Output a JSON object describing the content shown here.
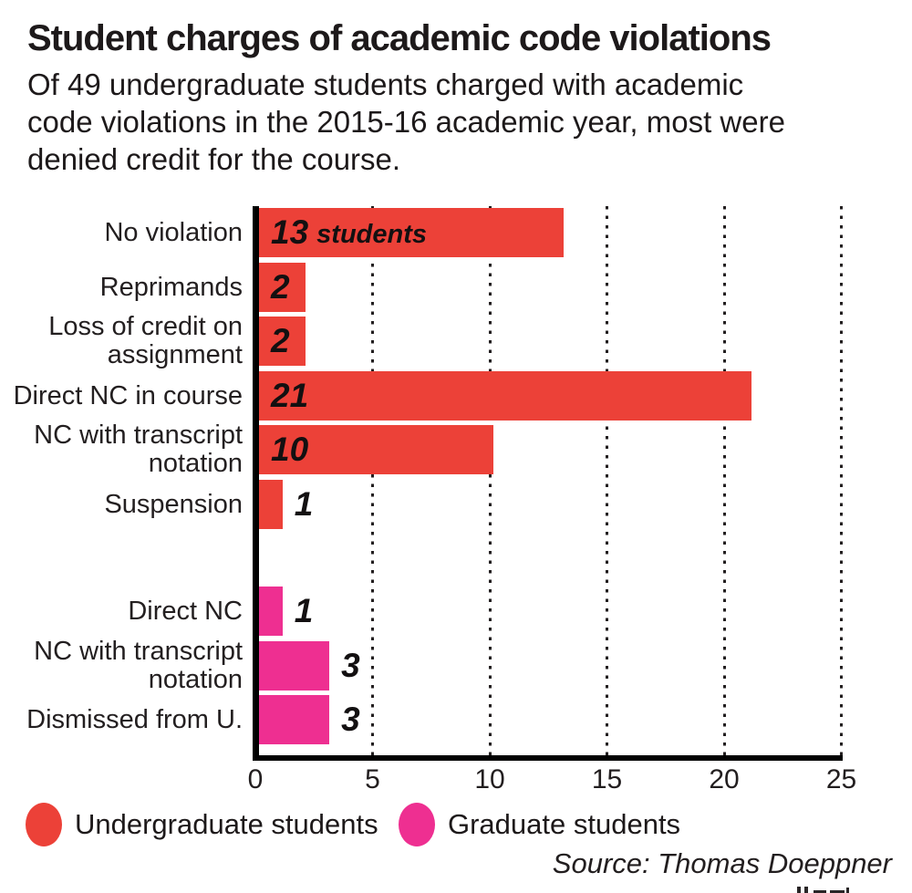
{
  "title": "Student charges of academic code violations",
  "subtitle_lines": [
    "Of 49 undergraduate students charged with academic",
    "code violations in the 2015-16 academic year, most were",
    "denied credit for the course."
  ],
  "source": "Source: Thomas Doeppner",
  "legend": [
    {
      "label": "Undergraduate students",
      "color": "#ec4138"
    },
    {
      "label": "Graduate students",
      "color": "#ee2f91"
    }
  ],
  "chart_data": {
    "type": "bar",
    "orientation": "horizontal",
    "title": "Student charges of academic code violations",
    "xlabel": "",
    "ylabel": "",
    "x_axis": {
      "min": 0,
      "max": 25,
      "ticks": [
        "0",
        "5",
        "10",
        "15",
        "20",
        "25"
      ],
      "tick_values": [
        0,
        5,
        10,
        15,
        20,
        25
      ],
      "gridlines": [
        5,
        10,
        15,
        20,
        25
      ],
      "grid_style": "dotted"
    },
    "rows": [
      {
        "label_lines": [
          "No violation"
        ],
        "value": 13,
        "value_suffix": "students",
        "series": "Undergraduate students",
        "value_inside": true
      },
      {
        "label_lines": [
          "Reprimands"
        ],
        "value": 2,
        "series": "Undergraduate students",
        "value_inside": true
      },
      {
        "label_lines": [
          "Loss of credit on",
          "assignment"
        ],
        "value": 2,
        "series": "Undergraduate students",
        "value_inside": true
      },
      {
        "label_lines": [
          "Direct NC in course"
        ],
        "value": 21,
        "series": "Undergraduate students",
        "value_inside": true
      },
      {
        "label_lines": [
          "NC with transcript",
          "notation"
        ],
        "value": 10,
        "series": "Undergraduate students",
        "value_inside": true
      },
      {
        "label_lines": [
          "Suspension"
        ],
        "value": 1,
        "series": "Undergraduate students",
        "value_inside": false
      },
      {
        "label_lines": [
          "Direct NC"
        ],
        "value": 1,
        "series": "Graduate students",
        "value_inside": false
      },
      {
        "label_lines": [
          "NC with transcript",
          "notation"
        ],
        "value": 3,
        "series": "Graduate students",
        "value_inside": false
      },
      {
        "label_lines": [
          "Dismissed from U."
        ],
        "value": 3,
        "series": "Graduate students",
        "value_inside": false
      }
    ]
  }
}
